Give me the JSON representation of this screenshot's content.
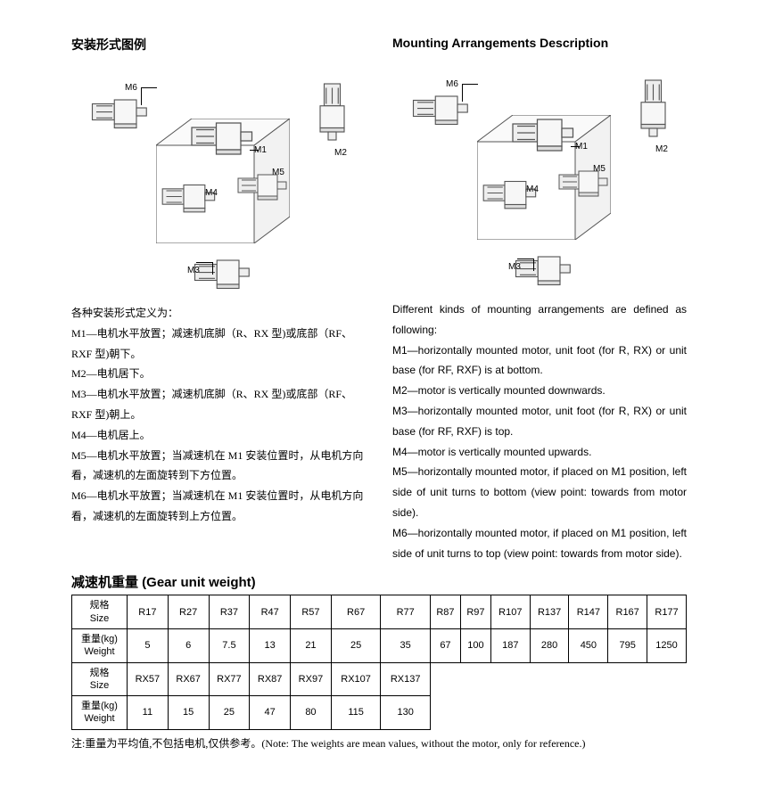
{
  "left": {
    "heading": "安装形式图例",
    "labels": {
      "m1": "M1",
      "m2": "M2",
      "m3": "M3",
      "m4": "M4",
      "m5": "M5",
      "m6": "M6"
    },
    "intro": "各种安装形式定义为：",
    "m1": "M1—电机水平放置；减速机底脚（R、RX 型)或底部（RF、RXF 型)朝下。",
    "m2": "M2—电机居下。",
    "m3": "M3—电机水平放置；减速机底脚（R、RX 型)或底部（RF、RXF 型)朝上。",
    "m4": "M4—电机居上。",
    "m5": "M5—电机水平放置；当减速机在 M1 安装位置时，从电机方向看，减速机的左面旋转到下方位置。",
    "m6": "M6—电机水平放置；当减速机在 M1 安装位置时，从电机方向看，减速机的左面旋转到上方位置。"
  },
  "right": {
    "heading": "Mounting Arrangements Description",
    "labels": {
      "m1": "M1",
      "m2": "M2",
      "m3": "M3",
      "m4": "M4",
      "m5": "M5",
      "m6": "M6"
    },
    "intro": "Different kinds of mounting arrangements are defined as following:",
    "m1": "M1—horizontally mounted motor, unit foot (for R, RX) or unit base (for RF, RXF) is at bottom.",
    "m2": "M2—motor is vertically mounted downwards.",
    "m3": "M3—horizontally mounted motor, unit foot (for R, RX) or unit base (for RF, RXF) is top.",
    "m4": "M4—motor is vertically mounted upwards.",
    "m5": "M5—horizontally mounted motor,  if placed on M1 position, left side of unit turns to bottom  (view point:  towards from motor side).",
    "m6": "M6—horizontally mounted motor,  if placed on M1 position, left side of unit turns to top (view point: towards from motor side)."
  },
  "table": {
    "heading": "减速机重量  (Gear unit weight)",
    "hdr_size_cn": "规格",
    "hdr_size_en": "Size",
    "hdr_weight_cn": "重量(kg)",
    "hdr_weight_en": "Weight",
    "row1_sizes": [
      "R17",
      "R27",
      "R37",
      "R47",
      "R57",
      "R67",
      "R77",
      "R87",
      "R97",
      "R107",
      "R137",
      "R147",
      "R167",
      "R177"
    ],
    "row1_weights": [
      "5",
      "6",
      "7.5",
      "13",
      "21",
      "25",
      "35",
      "67",
      "100",
      "187",
      "280",
      "450",
      "795",
      "1250"
    ],
    "row2_sizes": [
      "RX57",
      "RX67",
      "RX77",
      "RX87",
      "RX97",
      "RX107",
      "RX137"
    ],
    "row2_weights": [
      "11",
      "15",
      "25",
      "47",
      "80",
      "115",
      "130"
    ]
  },
  "note": "注:重量为平均值,不包括电机,仅供参考。(Note: The weights are mean values, without the motor, only for reference.)",
  "style": {
    "stroke": "#555",
    "table_border": "#000"
  }
}
